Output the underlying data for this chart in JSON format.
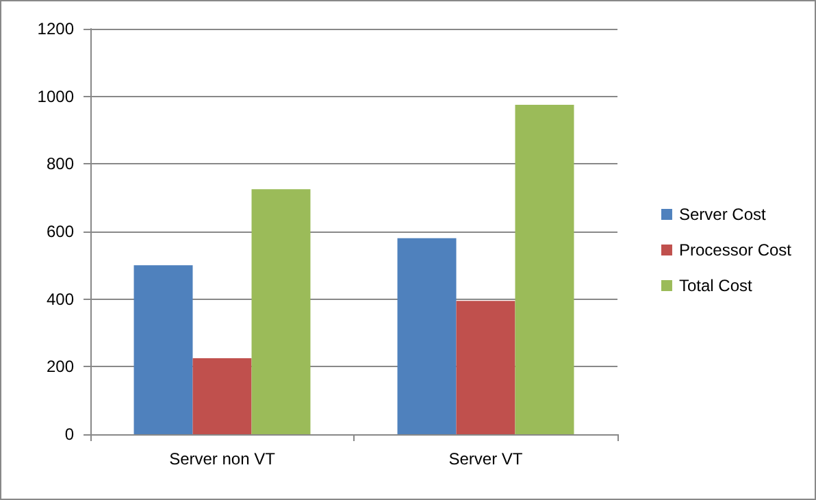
{
  "chart_data": {
    "type": "bar",
    "categories": [
      "Server non VT",
      "Server VT"
    ],
    "series": [
      {
        "name": "Server Cost",
        "color": "#4f81bd",
        "values": [
          500,
          580
        ]
      },
      {
        "name": "Processor Cost",
        "color": "#c0504d",
        "values": [
          225,
          395
        ]
      },
      {
        "name": "Total Cost",
        "color": "#9bbb59",
        "values": [
          725,
          975
        ]
      }
    ],
    "ylim": [
      0,
      1200
    ],
    "yticks": [
      0,
      200,
      400,
      600,
      800,
      1000,
      1200
    ],
    "grid": "y",
    "legend": "right"
  }
}
